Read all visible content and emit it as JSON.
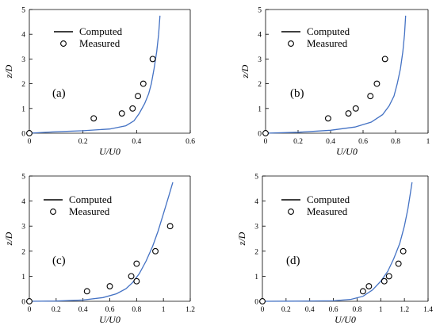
{
  "chart_data": [
    {
      "type": "line",
      "panel_label": "(a)",
      "xlabel": "U/U0",
      "ylabel": "z/D",
      "xlim": [
        0,
        0.6
      ],
      "ylim": [
        0,
        5
      ],
      "xticks": [
        "0",
        "0.2",
        "0.4",
        "0.6"
      ],
      "yticks": [
        "0",
        "1",
        "2",
        "3",
        "4",
        "5"
      ],
      "legend": {
        "position": "top-left",
        "entries": [
          "Computed",
          "Measured"
        ]
      },
      "series": [
        {
          "name": "Computed",
          "style": "line",
          "color": "#4472C4",
          "x": [
            0,
            0.1,
            0.2,
            0.3,
            0.36,
            0.39,
            0.41,
            0.43,
            0.445,
            0.455,
            0.465,
            0.475,
            0.482,
            0.487
          ],
          "y": [
            0,
            0.06,
            0.1,
            0.17,
            0.3,
            0.5,
            0.8,
            1.2,
            1.6,
            2.0,
            2.6,
            3.3,
            4.0,
            4.75
          ]
        },
        {
          "name": "Measured",
          "style": "marker",
          "x": [
            0,
            0.24,
            0.345,
            0.385,
            0.405,
            0.425,
            0.46
          ],
          "y": [
            0,
            0.6,
            0.8,
            1.0,
            1.5,
            2.0,
            3.0
          ]
        }
      ]
    },
    {
      "type": "line",
      "panel_label": "(b)",
      "xlabel": "U/U0",
      "ylabel": "z/D",
      "xlim": [
        0,
        1
      ],
      "ylim": [
        0,
        5
      ],
      "xticks": [
        "0",
        "0.2",
        "0.4",
        "0.6",
        "0.8",
        "1"
      ],
      "yticks": [
        "0",
        "1",
        "2",
        "3",
        "4",
        "5"
      ],
      "legend": {
        "position": "top-right",
        "entries": [
          "Computed",
          "Measured"
        ]
      },
      "series": [
        {
          "name": "Computed",
          "style": "line",
          "color": "#4472C4",
          "x": [
            0,
            0.2,
            0.4,
            0.55,
            0.65,
            0.72,
            0.76,
            0.79,
            0.81,
            0.83,
            0.845,
            0.855,
            0.862
          ],
          "y": [
            0,
            0.04,
            0.12,
            0.25,
            0.45,
            0.75,
            1.1,
            1.5,
            2.0,
            2.6,
            3.3,
            4.0,
            4.75
          ]
        },
        {
          "name": "Measured",
          "style": "marker",
          "x": [
            0,
            0.385,
            0.51,
            0.555,
            0.645,
            0.685,
            0.735
          ],
          "y": [
            0,
            0.6,
            0.8,
            1.0,
            1.5,
            2.0,
            3.0
          ]
        }
      ]
    },
    {
      "type": "line",
      "panel_label": "(c)",
      "xlabel": "U/U0",
      "ylabel": "z/D",
      "xlim": [
        0,
        1.2
      ],
      "ylim": [
        0,
        5
      ],
      "xticks": [
        "0",
        "0.2",
        "0.4",
        "0.6",
        "0.8",
        "1",
        "1.2"
      ],
      "yticks": [
        "0",
        "1",
        "2",
        "3",
        "4",
        "5"
      ],
      "legend": {
        "position": "top-left",
        "entries": [
          "Computed",
          "Measured"
        ]
      },
      "series": [
        {
          "name": "Computed",
          "style": "line",
          "color": "#4472C4",
          "x": [
            0,
            0.2,
            0.4,
            0.55,
            0.65,
            0.72,
            0.77,
            0.82,
            0.87,
            0.92,
            0.96,
            1.0,
            1.04,
            1.07
          ],
          "y": [
            0,
            0.01,
            0.05,
            0.15,
            0.3,
            0.5,
            0.75,
            1.1,
            1.6,
            2.2,
            2.8,
            3.5,
            4.2,
            4.75
          ]
        },
        {
          "name": "Measured",
          "style": "marker",
          "x": [
            0,
            0.43,
            0.6,
            0.76,
            0.8,
            0.8,
            0.94,
            1.05
          ],
          "y": [
            0,
            0.4,
            0.6,
            1.0,
            0.8,
            1.5,
            2.0,
            3.0
          ]
        }
      ]
    },
    {
      "type": "line",
      "panel_label": "(d)",
      "xlabel": "U/U0",
      "ylabel": "z/D",
      "xlim": [
        0,
        1.4
      ],
      "ylim": [
        0,
        5
      ],
      "xticks": [
        "0",
        "0.2",
        "0.4",
        "0.6",
        "0.8",
        "1",
        "1.2",
        "1.4"
      ],
      "yticks": [
        "0",
        "1",
        "2",
        "3",
        "4",
        "5"
      ],
      "legend": {
        "position": "top-left",
        "entries": [
          "Computed",
          "Measured"
        ]
      },
      "series": [
        {
          "name": "Computed",
          "style": "line",
          "color": "#4472C4",
          "x": [
            0,
            0.3,
            0.6,
            0.75,
            0.85,
            0.93,
            1.0,
            1.06,
            1.11,
            1.16,
            1.2,
            1.23,
            1.25,
            1.265
          ],
          "y": [
            0,
            0.005,
            0.02,
            0.08,
            0.2,
            0.45,
            0.8,
            1.2,
            1.7,
            2.3,
            3.0,
            3.7,
            4.3,
            4.75
          ]
        },
        {
          "name": "Measured",
          "style": "marker",
          "x": [
            0,
            0.85,
            0.9,
            1.03,
            1.07,
            1.15,
            1.19
          ],
          "y": [
            0,
            0.4,
            0.6,
            0.8,
            1.0,
            1.5,
            2.0
          ]
        }
      ]
    }
  ]
}
